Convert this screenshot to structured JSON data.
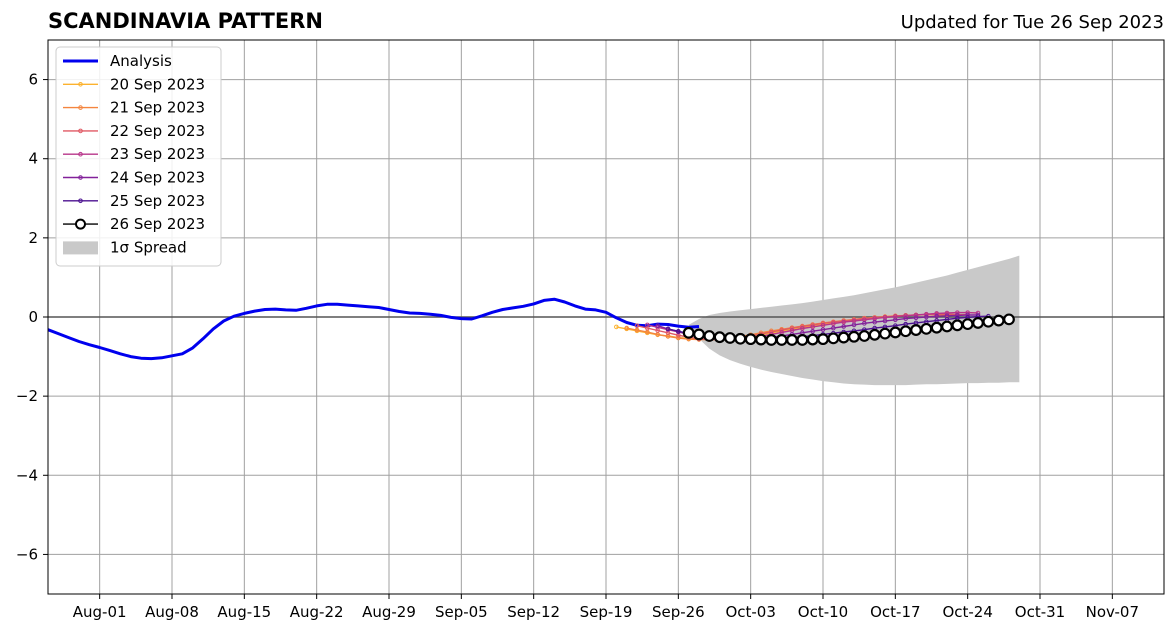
{
  "header": {
    "title": "SCANDINAVIA PATTERN",
    "updated": "Updated for Tue 26 Sep 2023"
  },
  "chart_data": {
    "type": "line",
    "x_start": "2023-07-27",
    "x_end": "2023-11-12",
    "ylim": [
      -7,
      7
    ],
    "yticks": [
      -6,
      -4,
      -2,
      0,
      2,
      4,
      6
    ],
    "ytick_labels": [
      "−6",
      "−4",
      "−2",
      "0",
      "2",
      "4",
      "6"
    ],
    "xticks": [
      "2023-08-01",
      "2023-08-08",
      "2023-08-15",
      "2023-08-22",
      "2023-08-29",
      "2023-09-05",
      "2023-09-12",
      "2023-09-19",
      "2023-09-26",
      "2023-10-03",
      "2023-10-10",
      "2023-10-17",
      "2023-10-24",
      "2023-10-31",
      "2023-11-07"
    ],
    "xtick_labels": [
      "Aug-01",
      "Aug-08",
      "Aug-15",
      "Aug-22",
      "Aug-29",
      "Sep-05",
      "Sep-12",
      "Sep-19",
      "Sep-26",
      "Oct-03",
      "Oct-10",
      "Oct-17",
      "Oct-24",
      "Oct-31",
      "Nov-07"
    ],
    "grid": true,
    "legend_position": "upper-left",
    "analysis": {
      "name": "Analysis",
      "color": "#0000ee",
      "start_date": "2023-07-27",
      "values": [
        -0.32,
        -0.42,
        -0.52,
        -0.62,
        -0.7,
        -0.77,
        -0.85,
        -0.93,
        -1.0,
        -1.04,
        -1.05,
        -1.03,
        -0.98,
        -0.93,
        -0.78,
        -0.55,
        -0.3,
        -0.1,
        0.02,
        0.09,
        0.15,
        0.19,
        0.2,
        0.18,
        0.17,
        0.22,
        0.28,
        0.32,
        0.32,
        0.3,
        0.28,
        0.26,
        0.24,
        0.19,
        0.14,
        0.1,
        0.09,
        0.07,
        0.04,
        -0.01,
        -0.04,
        -0.05,
        0.03,
        0.12,
        0.19,
        0.23,
        0.27,
        0.33,
        0.42,
        0.45,
        0.38,
        0.28,
        0.2,
        0.18,
        0.12,
        -0.02,
        -0.14,
        -0.21,
        -0.22,
        -0.18,
        -0.19,
        -0.23,
        -0.26,
        -0.24
      ]
    },
    "forecasts": [
      {
        "name": "20 Sep 2023",
        "color": "#fcb22e",
        "start_date": "2023-09-20",
        "values": [
          -0.25,
          -0.3,
          -0.35,
          -0.4,
          -0.45,
          -0.48,
          -0.52,
          -0.54,
          -0.56,
          -0.57,
          -0.57,
          -0.56,
          -0.54,
          -0.5,
          -0.45,
          -0.4,
          -0.35,
          -0.3,
          -0.26,
          -0.22,
          -0.18,
          -0.14,
          -0.1,
          -0.07,
          -0.04,
          -0.02,
          0.0,
          0.02,
          0.04,
          0.05,
          0.06,
          0.06,
          0.05
        ]
      },
      {
        "name": "21 Sep 2023",
        "color": "#f4853f",
        "start_date": "2023-09-21",
        "values": [
          -0.28,
          -0.33,
          -0.38,
          -0.44,
          -0.49,
          -0.53,
          -0.56,
          -0.57,
          -0.57,
          -0.56,
          -0.53,
          -0.49,
          -0.45,
          -0.4,
          -0.35,
          -0.31,
          -0.27,
          -0.23,
          -0.19,
          -0.15,
          -0.12,
          -0.09,
          -0.06,
          -0.03,
          -0.01,
          0.01,
          0.03,
          0.04,
          0.05,
          0.06,
          0.06,
          0.05,
          0.05
        ]
      },
      {
        "name": "22 Sep 2023",
        "color": "#e05863",
        "start_date": "2023-09-22",
        "values": [
          -0.22,
          -0.28,
          -0.34,
          -0.4,
          -0.46,
          -0.51,
          -0.55,
          -0.57,
          -0.57,
          -0.55,
          -0.52,
          -0.48,
          -0.43,
          -0.38,
          -0.33,
          -0.28,
          -0.24,
          -0.2,
          -0.16,
          -0.13,
          -0.1,
          -0.07,
          -0.04,
          -0.02,
          0.0,
          0.02,
          0.04,
          0.05,
          0.06,
          0.07,
          0.07,
          0.06,
          0.06
        ]
      },
      {
        "name": "23 Sep 2023",
        "color": "#b7348a",
        "start_date": "2023-09-23",
        "values": [
          -0.2,
          -0.26,
          -0.32,
          -0.38,
          -0.44,
          -0.49,
          -0.53,
          -0.56,
          -0.57,
          -0.56,
          -0.53,
          -0.49,
          -0.44,
          -0.39,
          -0.34,
          -0.29,
          -0.25,
          -0.21,
          -0.17,
          -0.13,
          -0.1,
          -0.07,
          -0.04,
          -0.01,
          0.01,
          0.03,
          0.05,
          0.07,
          0.09,
          0.1,
          0.11,
          0.11,
          0.1
        ]
      },
      {
        "name": "24 Sep 2023",
        "color": "#82219a",
        "start_date": "2023-09-24",
        "values": [
          -0.22,
          -0.3,
          -0.37,
          -0.43,
          -0.48,
          -0.52,
          -0.55,
          -0.57,
          -0.58,
          -0.57,
          -0.55,
          -0.52,
          -0.48,
          -0.44,
          -0.4,
          -0.36,
          -0.32,
          -0.28,
          -0.24,
          -0.2,
          -0.16,
          -0.13,
          -0.1,
          -0.07,
          -0.04,
          -0.02,
          0.0,
          0.02,
          0.03,
          0.04,
          0.05,
          0.05
        ]
      },
      {
        "name": "25 Sep 2023",
        "color": "#4b1190",
        "start_date": "2023-09-25",
        "values": [
          -0.3,
          -0.36,
          -0.42,
          -0.47,
          -0.51,
          -0.54,
          -0.57,
          -0.58,
          -0.58,
          -0.58,
          -0.57,
          -0.55,
          -0.53,
          -0.5,
          -0.47,
          -0.44,
          -0.41,
          -0.38,
          -0.35,
          -0.32,
          -0.28,
          -0.25,
          -0.22,
          -0.18,
          -0.15,
          -0.12,
          -0.09,
          -0.06,
          -0.03,
          -0.01,
          0.01,
          0.02
        ]
      }
    ],
    "current": {
      "name": "26 Sep 2023",
      "color": "#000000",
      "start_date": "2023-09-27",
      "values": [
        -0.4,
        -0.44,
        -0.48,
        -0.51,
        -0.53,
        -0.55,
        -0.56,
        -0.57,
        -0.58,
        -0.58,
        -0.58,
        -0.58,
        -0.57,
        -0.56,
        -0.54,
        -0.52,
        -0.5,
        -0.48,
        -0.45,
        -0.42,
        -0.39,
        -0.36,
        -0.33,
        -0.3,
        -0.27,
        -0.24,
        -0.21,
        -0.18,
        -0.15,
        -0.12,
        -0.09,
        -0.06
      ]
    },
    "spread": {
      "name": "1σ Spread",
      "color": "#c9c9c9",
      "start_date": "2023-09-27",
      "upper": [
        -0.2,
        -0.05,
        0.05,
        0.1,
        0.14,
        0.17,
        0.2,
        0.23,
        0.26,
        0.29,
        0.32,
        0.35,
        0.39,
        0.43,
        0.47,
        0.51,
        0.55,
        0.6,
        0.65,
        0.7,
        0.75,
        0.81,
        0.87,
        0.93,
        0.99,
        1.05,
        1.12,
        1.19,
        1.26,
        1.33,
        1.4,
        1.47,
        1.55
      ],
      "lower": [
        -0.2,
        -0.55,
        -0.8,
        -0.97,
        -1.09,
        -1.18,
        -1.26,
        -1.33,
        -1.39,
        -1.44,
        -1.49,
        -1.54,
        -1.58,
        -1.62,
        -1.65,
        -1.68,
        -1.7,
        -1.71,
        -1.72,
        -1.72,
        -1.72,
        -1.72,
        -1.71,
        -1.7,
        -1.7,
        -1.69,
        -1.68,
        -1.67,
        -1.67,
        -1.66,
        -1.66,
        -1.65,
        -1.65
      ]
    }
  }
}
